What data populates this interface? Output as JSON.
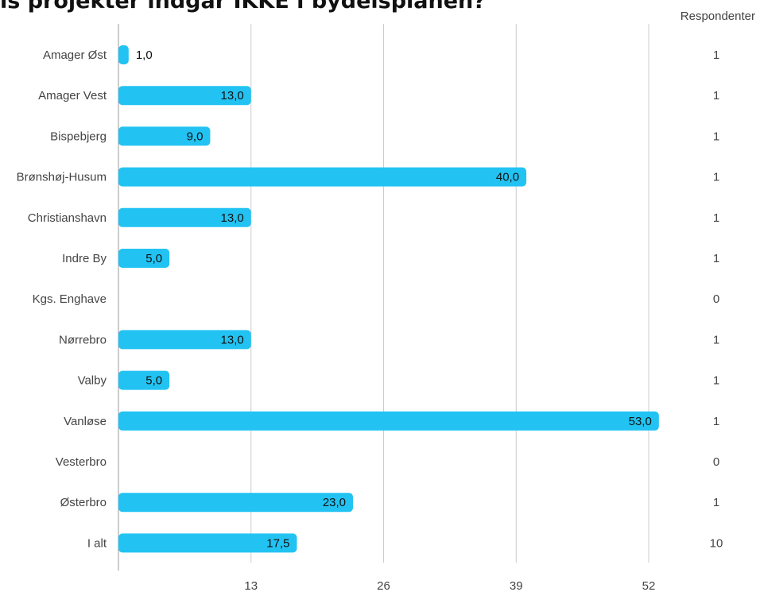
{
  "title": "ls projekter indgår IKKE i bydelsplanen?",
  "respondents_header": "Respondenter",
  "colors": {
    "bar": "#22c3f3",
    "grid": "#cccccc",
    "axis": "#999999"
  },
  "chart_data": {
    "type": "bar",
    "orientation": "horizontal",
    "title": "ls projekter indgår IKKE i bydelsplanen?",
    "categories": [
      "Amager Øst",
      "Amager Vest",
      "Bispebjerg",
      "Brønshøj-Husum",
      "Christianshavn",
      "Indre By",
      "Kgs. Enghave",
      "Nørrebro",
      "Valby",
      "Vanløse",
      "Vesterbro",
      "Østerbro",
      "I alt"
    ],
    "values": [
      1.0,
      13.0,
      9.0,
      40.0,
      13.0,
      5.0,
      null,
      13.0,
      5.0,
      53.0,
      null,
      23.0,
      17.5
    ],
    "value_labels": [
      "1,0",
      "13,0",
      "9,0",
      "40,0",
      "13,0",
      "5,0",
      "",
      "13,0",
      "5,0",
      "53,0",
      "",
      "23,0",
      "17,5"
    ],
    "respondents": [
      "1",
      "1",
      "1",
      "1",
      "1",
      "1",
      "0",
      "1",
      "1",
      "1",
      "0",
      "1",
      "10"
    ],
    "xticks": [
      13,
      26,
      39,
      52
    ],
    "xtick_labels": [
      "13",
      "26",
      "39",
      "52"
    ],
    "xlim": [
      0,
      58
    ],
    "grid": true,
    "legend": "none"
  }
}
